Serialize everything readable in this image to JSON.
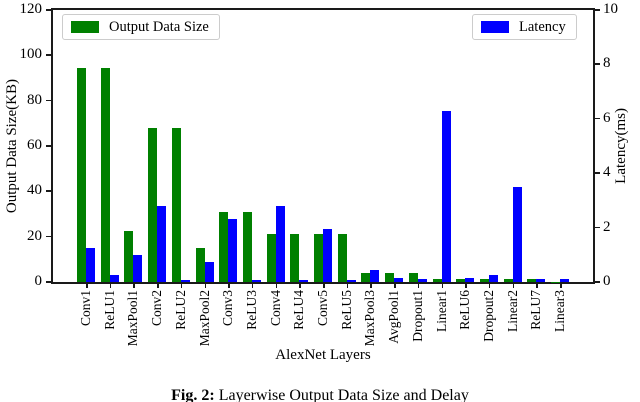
{
  "chart_data": {
    "type": "bar",
    "title": "",
    "categories": [
      "Conv1",
      "ReLU1",
      "MaxPool1",
      "Conv2",
      "ReLU2",
      "MaxPool2",
      "Conv3",
      "ReLU3",
      "Conv4",
      "ReLU4",
      "Conv5",
      "ReLU5",
      "MaxPool3",
      "AvgPool1",
      "Dropout1",
      "Linear1",
      "ReLU6",
      "Dropout2",
      "Linear2",
      "ReLU7",
      "Linear3"
    ],
    "series": [
      {
        "name": "Output Data Size",
        "axis": "left",
        "unit": "KB",
        "color": "#008000",
        "values": [
          94.5,
          94.5,
          22.5,
          68,
          68,
          15,
          31,
          31,
          21,
          21,
          21,
          21,
          4,
          4,
          4,
          1.5,
          1.5,
          1.5,
          1.5,
          1.5,
          0.2
        ]
      },
      {
        "name": "Latency",
        "axis": "right",
        "unit": "ms",
        "color": "#0000ff",
        "values": [
          1.25,
          0.25,
          1.0,
          2.8,
          0.08,
          0.75,
          2.3,
          0.08,
          2.8,
          0.08,
          1.95,
          0.08,
          0.45,
          0.15,
          0.1,
          6.3,
          0.15,
          0.25,
          3.5,
          0.1,
          0.12
        ]
      }
    ],
    "left_axis": {
      "label": "Output Data Size(KB)",
      "min": 0,
      "max": 120,
      "ticks": [
        0,
        20,
        40,
        60,
        80,
        100,
        120
      ]
    },
    "right_axis": {
      "label": "Latency(ms)",
      "min": 0,
      "max": 10,
      "ticks": [
        0,
        2,
        4,
        6,
        8,
        10
      ]
    },
    "xlabel": "AlexNet Layers",
    "legend_position": [
      "upper-left",
      "upper-right"
    ],
    "grid": false
  },
  "caption": {
    "prefix": "Fig. 2:",
    "text": "Layerwise Output Data Size and Delay"
  }
}
